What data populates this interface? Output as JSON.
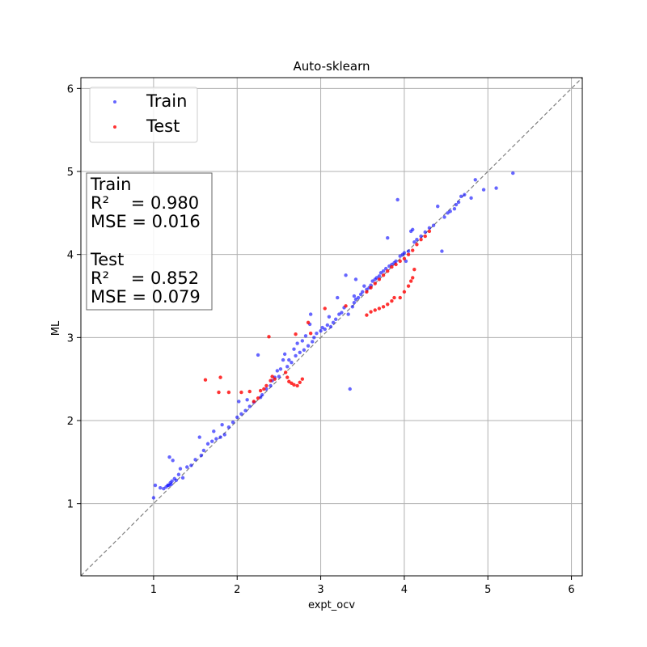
{
  "chart_data": {
    "type": "scatter",
    "title": "Auto-sklearn",
    "xlabel": "expt_ocv",
    "ylabel": "ML",
    "xlim": [
      0.13,
      6.13
    ],
    "ylim": [
      0.13,
      6.13
    ],
    "xticks": [
      1,
      2,
      3,
      4,
      5,
      6
    ],
    "yticks": [
      1,
      2,
      3,
      4,
      5,
      6
    ],
    "grid": true,
    "legend_position": "top-left",
    "reference_line": {
      "from": [
        0.13,
        0.13
      ],
      "to": [
        6.13,
        6.13
      ],
      "style": "dashed",
      "color": "#808080"
    },
    "series": [
      {
        "name": "Train",
        "color": "#0000ff",
        "points": [
          [
            1.0,
            1.07
          ],
          [
            1.02,
            1.22
          ],
          [
            1.08,
            1.19
          ],
          [
            1.12,
            1.18
          ],
          [
            1.15,
            1.2
          ],
          [
            1.17,
            1.22
          ],
          [
            1.18,
            1.22
          ],
          [
            1.19,
            1.56
          ],
          [
            1.2,
            1.25
          ],
          [
            1.21,
            1.23
          ],
          [
            1.22,
            1.27
          ],
          [
            1.23,
            1.52
          ],
          [
            1.25,
            1.3
          ],
          [
            1.27,
            1.28
          ],
          [
            1.3,
            1.35
          ],
          [
            1.32,
            1.42
          ],
          [
            1.35,
            1.31
          ],
          [
            1.4,
            1.44
          ],
          [
            1.45,
            1.46
          ],
          [
            1.5,
            1.53
          ],
          [
            1.55,
            1.8
          ],
          [
            1.57,
            1.58
          ],
          [
            1.6,
            1.64
          ],
          [
            1.65,
            1.72
          ],
          [
            1.7,
            1.75
          ],
          [
            1.72,
            1.87
          ],
          [
            1.75,
            1.78
          ],
          [
            1.8,
            1.8
          ],
          [
            1.82,
            1.95
          ],
          [
            1.85,
            1.83
          ],
          [
            1.9,
            1.92
          ],
          [
            1.95,
            1.98
          ],
          [
            2.0,
            2.04
          ],
          [
            2.02,
            2.23
          ],
          [
            2.05,
            2.08
          ],
          [
            2.1,
            2.12
          ],
          [
            2.12,
            2.25
          ],
          [
            2.15,
            2.17
          ],
          [
            2.2,
            2.22
          ],
          [
            2.25,
            2.79
          ],
          [
            2.28,
            2.28
          ],
          [
            2.3,
            2.31
          ],
          [
            2.35,
            2.38
          ],
          [
            2.4,
            2.42
          ],
          [
            2.42,
            2.48
          ],
          [
            2.45,
            2.52
          ],
          [
            2.48,
            2.6
          ],
          [
            2.5,
            2.53
          ],
          [
            2.52,
            2.62
          ],
          [
            2.55,
            2.73
          ],
          [
            2.57,
            2.8
          ],
          [
            2.6,
            2.65
          ],
          [
            2.62,
            2.73
          ],
          [
            2.65,
            2.7
          ],
          [
            2.68,
            2.86
          ],
          [
            2.7,
            2.78
          ],
          [
            2.72,
            2.93
          ],
          [
            2.75,
            2.82
          ],
          [
            2.78,
            2.96
          ],
          [
            2.8,
            2.85
          ],
          [
            2.82,
            3.02
          ],
          [
            2.85,
            2.9
          ],
          [
            2.87,
            3.16
          ],
          [
            2.88,
            3.28
          ],
          [
            2.9,
            2.95
          ],
          [
            2.92,
            3.0
          ],
          [
            2.95,
            3.05
          ],
          [
            3.0,
            3.08
          ],
          [
            3.02,
            3.12
          ],
          [
            3.05,
            3.1
          ],
          [
            3.08,
            3.15
          ],
          [
            3.1,
            3.25
          ],
          [
            3.12,
            3.13
          ],
          [
            3.15,
            3.18
          ],
          [
            3.18,
            3.22
          ],
          [
            3.2,
            3.48
          ],
          [
            3.22,
            3.28
          ],
          [
            3.25,
            3.3
          ],
          [
            3.28,
            3.36
          ],
          [
            3.3,
            3.75
          ],
          [
            3.33,
            3.28
          ],
          [
            3.35,
            2.38
          ],
          [
            3.38,
            3.37
          ],
          [
            3.4,
            3.42
          ],
          [
            3.4,
            3.5
          ],
          [
            3.42,
            3.7
          ],
          [
            3.42,
            3.46
          ],
          [
            3.45,
            3.48
          ],
          [
            3.48,
            3.52
          ],
          [
            3.5,
            3.55
          ],
          [
            3.52,
            3.62
          ],
          [
            3.55,
            3.58
          ],
          [
            3.58,
            3.6
          ],
          [
            3.6,
            3.63
          ],
          [
            3.62,
            3.68
          ],
          [
            3.65,
            3.7
          ],
          [
            3.67,
            3.72
          ],
          [
            3.7,
            3.74
          ],
          [
            3.72,
            3.78
          ],
          [
            3.75,
            3.8
          ],
          [
            3.78,
            3.83
          ],
          [
            3.8,
            4.2
          ],
          [
            3.82,
            3.86
          ],
          [
            3.85,
            3.88
          ],
          [
            3.88,
            3.9
          ],
          [
            3.9,
            3.92
          ],
          [
            3.92,
            4.66
          ],
          [
            3.95,
            3.98
          ],
          [
            3.98,
            4.0
          ],
          [
            4.0,
            4.02
          ],
          [
            4.02,
            3.92
          ],
          [
            4.05,
            4.04
          ],
          [
            4.08,
            4.28
          ],
          [
            4.1,
            4.3
          ],
          [
            4.12,
            4.15
          ],
          [
            4.15,
            4.18
          ],
          [
            4.2,
            4.22
          ],
          [
            4.25,
            4.27
          ],
          [
            4.3,
            4.32
          ],
          [
            4.35,
            4.35
          ],
          [
            4.4,
            4.58
          ],
          [
            4.45,
            4.04
          ],
          [
            4.48,
            4.45
          ],
          [
            4.52,
            4.5
          ],
          [
            4.55,
            4.52
          ],
          [
            4.6,
            4.55
          ],
          [
            4.62,
            4.6
          ],
          [
            4.65,
            4.63
          ],
          [
            4.68,
            4.7
          ],
          [
            4.72,
            4.72
          ],
          [
            4.8,
            4.68
          ],
          [
            4.85,
            4.9
          ],
          [
            4.95,
            4.78
          ],
          [
            5.1,
            4.8
          ],
          [
            5.3,
            4.98
          ]
        ]
      },
      {
        "name": "Test",
        "color": "#ff0000",
        "points": [
          [
            1.62,
            2.49
          ],
          [
            1.78,
            2.34
          ],
          [
            1.8,
            2.52
          ],
          [
            1.9,
            2.34
          ],
          [
            2.05,
            2.34
          ],
          [
            2.15,
            2.35
          ],
          [
            2.2,
            2.23
          ],
          [
            2.25,
            2.27
          ],
          [
            2.28,
            2.36
          ],
          [
            2.32,
            2.38
          ],
          [
            2.35,
            2.42
          ],
          [
            2.38,
            3.01
          ],
          [
            2.4,
            2.48
          ],
          [
            2.42,
            2.53
          ],
          [
            2.45,
            2.5
          ],
          [
            2.58,
            2.58
          ],
          [
            2.6,
            2.52
          ],
          [
            2.62,
            2.47
          ],
          [
            2.65,
            2.45
          ],
          [
            2.68,
            2.43
          ],
          [
            2.7,
            3.04
          ],
          [
            2.72,
            2.42
          ],
          [
            2.75,
            2.46
          ],
          [
            2.78,
            2.5
          ],
          [
            2.85,
            3.18
          ],
          [
            2.88,
            3.05
          ],
          [
            3.05,
            3.35
          ],
          [
            3.3,
            3.38
          ],
          [
            3.55,
            3.27
          ],
          [
            3.6,
            3.31
          ],
          [
            3.65,
            3.33
          ],
          [
            3.7,
            3.35
          ],
          [
            3.75,
            3.37
          ],
          [
            3.8,
            3.4
          ],
          [
            3.85,
            3.44
          ],
          [
            3.88,
            3.48
          ],
          [
            3.95,
            3.48
          ],
          [
            4.0,
            3.55
          ],
          [
            4.05,
            3.62
          ],
          [
            4.08,
            3.68
          ],
          [
            4.1,
            3.72
          ],
          [
            4.12,
            3.82
          ],
          [
            3.55,
            3.55
          ],
          [
            3.6,
            3.6
          ],
          [
            3.65,
            3.65
          ],
          [
            3.7,
            3.7
          ],
          [
            3.75,
            3.75
          ],
          [
            3.8,
            3.8
          ],
          [
            3.85,
            3.85
          ],
          [
            3.9,
            3.88
          ],
          [
            3.95,
            3.92
          ],
          [
            4.0,
            3.95
          ],
          [
            4.05,
            4.0
          ],
          [
            4.1,
            4.05
          ],
          [
            4.15,
            4.12
          ],
          [
            4.2,
            4.18
          ],
          [
            4.25,
            4.22
          ],
          [
            4.3,
            4.28
          ]
        ]
      }
    ],
    "stats_box": [
      "Train",
      "R²    = 0.980",
      "MSE = 0.016",
      "",
      "Test",
      "R²    = 0.852",
      "MSE = 0.079"
    ]
  }
}
